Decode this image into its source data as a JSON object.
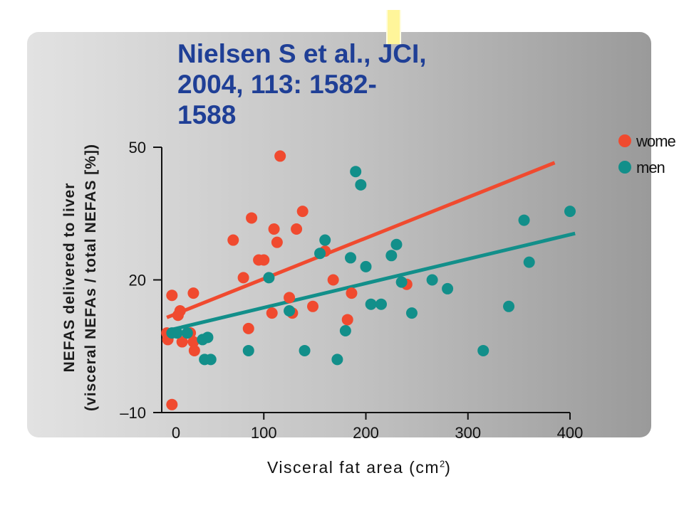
{
  "citation": "Nielsen S et al., JCI,\n2004, 113: 1582-\n1588",
  "chart_data": {
    "type": "scatter",
    "title": "",
    "xlabel": "Visceral fat area (cm",
    "xlabel_sup": "2",
    "xlabel_end": ")",
    "ylabel_line1": "NEFAS delivered to liver",
    "ylabel_line2": "(visceral NEFAs / total NEFAS [%])",
    "xlim": [
      0,
      400
    ],
    "ylim": [
      -10,
      50
    ],
    "x_ticks": [
      0,
      100,
      200,
      300,
      400
    ],
    "y_ticks": [
      -10,
      20,
      50
    ],
    "x_tick_labels": [
      "0",
      "100",
      "200",
      "300",
      "400"
    ],
    "y_tick_labels": [
      "–10",
      "20",
      "50"
    ],
    "grid": false,
    "legend_position": "top-right",
    "series": [
      {
        "name": "wome",
        "color": "#f04a2f",
        "points": [
          [
            5,
            8
          ],
          [
            6,
            6.5
          ],
          [
            10,
            -8.2
          ],
          [
            10,
            16.5
          ],
          [
            16,
            12
          ],
          [
            18,
            13
          ],
          [
            20,
            6
          ],
          [
            28,
            8
          ],
          [
            31,
            6
          ],
          [
            32,
            4
          ],
          [
            31,
            17
          ],
          [
            70,
            29
          ],
          [
            80,
            20.5
          ],
          [
            85,
            9
          ],
          [
            88,
            34
          ],
          [
            95,
            24.5
          ],
          [
            100,
            24.5
          ],
          [
            108,
            12.5
          ],
          [
            110,
            31.5
          ],
          [
            113,
            28.5
          ],
          [
            116,
            48
          ],
          [
            125,
            16
          ],
          [
            128,
            12.5
          ],
          [
            132,
            31.5
          ],
          [
            138,
            35.5
          ],
          [
            148,
            14
          ],
          [
            160,
            26.5
          ],
          [
            168,
            20
          ],
          [
            182,
            11
          ],
          [
            186,
            17
          ],
          [
            240,
            19
          ]
        ],
        "fit": [
          [
            5,
            11.5
          ],
          [
            385,
            46.5
          ]
        ]
      },
      {
        "name": "men",
        "color": "#128f8a",
        "points": [
          [
            10,
            8
          ],
          [
            15,
            8
          ],
          [
            25,
            8
          ],
          [
            40,
            6.5
          ],
          [
            42,
            2
          ],
          [
            45,
            7
          ],
          [
            48,
            2
          ],
          [
            85,
            4
          ],
          [
            105,
            20.5
          ],
          [
            125,
            13
          ],
          [
            140,
            4
          ],
          [
            155,
            26
          ],
          [
            160,
            29
          ],
          [
            172,
            2
          ],
          [
            180,
            8.5
          ],
          [
            185,
            25
          ],
          [
            190,
            44.5
          ],
          [
            195,
            41.5
          ],
          [
            200,
            23
          ],
          [
            205,
            14.5
          ],
          [
            215,
            14.5
          ],
          [
            225,
            25.5
          ],
          [
            230,
            28
          ],
          [
            235,
            19.5
          ],
          [
            245,
            12.5
          ],
          [
            265,
            20
          ],
          [
            280,
            18
          ],
          [
            315,
            4
          ],
          [
            340,
            14
          ],
          [
            355,
            33.5
          ],
          [
            360,
            24
          ],
          [
            400,
            35.5
          ]
        ],
        "fit": [
          [
            5,
            8.5
          ],
          [
            405,
            30.5
          ]
        ]
      }
    ]
  }
}
